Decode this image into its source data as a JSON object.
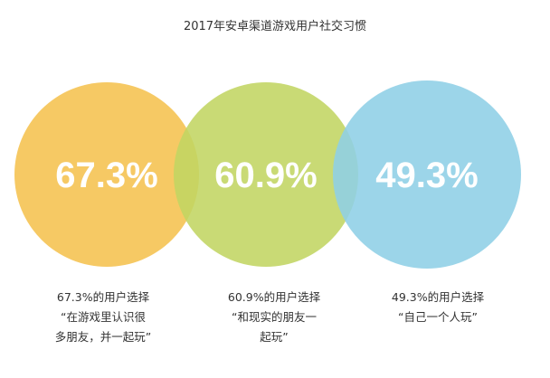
{
  "chart_data": {
    "type": "venn",
    "title": "2017年安卓渠道游戏用户社交习惯",
    "series": [
      {
        "name": "在游戏里认识很多朋友，并一起玩",
        "value": 67.3,
        "value_label": "67.3%",
        "color": "#f5c14f",
        "caption_lines": [
          "67.3%的用户选择",
          "“在游戏里认识很",
          "多朋友，并一起玩”"
        ]
      },
      {
        "name": "和现实的朋友一起玩",
        "value": 60.9,
        "value_label": "60.9%",
        "color": "#c2d562",
        "caption_lines": [
          "60.9%的用户选择",
          "“和现实的朋友一",
          "起玩”"
        ]
      },
      {
        "name": "自己一个人玩",
        "value": 49.3,
        "value_label": "49.3%",
        "color": "#8ecfe6",
        "caption_lines": [
          "49.3%的用户选择",
          "“自己一个人玩”"
        ]
      }
    ]
  }
}
